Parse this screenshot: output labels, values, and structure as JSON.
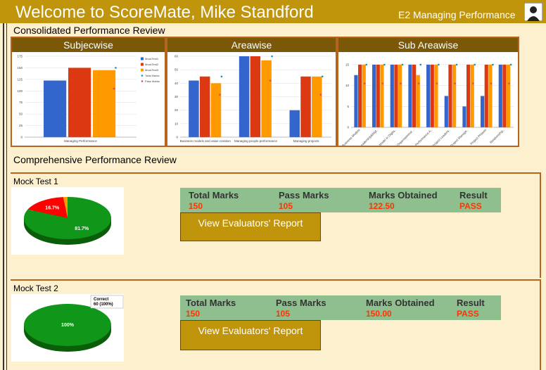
{
  "header": {
    "title": "Welcome to ScoreMate, Mike Standford",
    "role": "E2 Managing Performance"
  },
  "consolidated": {
    "title": "Consolidated Performance Review",
    "panels": [
      {
        "title": "Subjecwise",
        "chart_data": {
          "type": "bar",
          "categories": [
            "Managing Performance"
          ],
          "series": [
            {
              "name": "MockTest1",
              "color": "#3366cc",
              "style": "bar",
              "values": [
                122.5
              ]
            },
            {
              "name": "MockTest2",
              "color": "#dc3912",
              "style": "bar",
              "values": [
                150
              ]
            },
            {
              "name": "MockTest3",
              "color": "#ff9900",
              "style": "bar",
              "values": [
                145
              ]
            },
            {
              "name": "Total Marks",
              "color": "#0099c6",
              "style": "marker",
              "values": [
                150
              ]
            },
            {
              "name": "Pass Marks",
              "color": "#dd4477",
              "style": "marker",
              "values": [
                105
              ]
            }
          ],
          "ylim": [
            0,
            175
          ],
          "yticks": [
            0,
            25,
            50,
            75,
            100,
            125,
            150,
            175
          ],
          "grid": true,
          "legend": "right"
        }
      },
      {
        "title": "Areawise",
        "chart_data": {
          "type": "bar",
          "categories": [
            "Business models and value creation",
            "Managing people performance",
            "Managing projects"
          ],
          "series": [
            {
              "color": "#3366cc",
              "style": "bar",
              "values": [
                42,
                60,
                20
              ]
            },
            {
              "color": "#dc3912",
              "style": "bar",
              "values": [
                45,
                60,
                45
              ]
            },
            {
              "color": "#ff9900",
              "style": "bar",
              "values": [
                40,
                57,
                45
              ]
            },
            {
              "color": "#0099c6",
              "style": "marker",
              "values": [
                45,
                60,
                45
              ]
            },
            {
              "color": "#dd4477",
              "style": "marker",
              "values": [
                31.5,
                42,
                31.5
              ]
            }
          ],
          "ylim": [
            0,
            60
          ],
          "yticks": [
            0,
            10,
            20,
            30,
            40,
            50,
            60
          ],
          "grid": true
        }
      },
      {
        "title": "Sub Areawise",
        "chart_data": {
          "type": "bar",
          "categories": [
            "Business Models",
            "Leadership&Mgt..",
            "Model in Digita..",
            "Organisational ..",
            "Performance A..",
            "Project Leaders..",
            "Project Manage..",
            "Project Phases",
            "Relationship.."
          ],
          "series": [
            {
              "color": "#3366cc",
              "style": "bar",
              "values": [
                12.5,
                15,
                15,
                15,
                15,
                7.5,
                5,
                7.5,
                15
              ]
            },
            {
              "color": "#dc3912",
              "style": "bar",
              "values": [
                15,
                15,
                15,
                15,
                15,
                15,
                15,
                15,
                15
              ]
            },
            {
              "color": "#ff9900",
              "style": "bar",
              "values": [
                15,
                15,
                15,
                12.5,
                15,
                15,
                15,
                15,
                15
              ]
            },
            {
              "color": "#0099c6",
              "style": "marker",
              "values": [
                15,
                15,
                15,
                15,
                15,
                15,
                15,
                15,
                15
              ]
            },
            {
              "color": "#dd4477",
              "style": "marker",
              "values": [
                10.5,
                10.5,
                10.5,
                10.5,
                10.5,
                10.5,
                10.5,
                10.5,
                10.5
              ]
            }
          ],
          "ylim": [
            0,
            17
          ],
          "yticks": [
            0,
            5,
            10,
            15
          ],
          "grid": true,
          "rotate_labels": true
        }
      }
    ]
  },
  "comprehensive": {
    "title": "Comprehensive Performance Review",
    "tests": [
      {
        "name": "Mock Test 1",
        "pie": {
          "type": "pie",
          "values": [
            81.7,
            16.7,
            1.6
          ],
          "value_labels": [
            "81.7%",
            "16.7%",
            null
          ],
          "colors": [
            "#109618",
            "#ff0000",
            "#ff9900"
          ]
        },
        "table": {
          "headers": [
            "Total Marks",
            "Pass Marks",
            "Marks Obtained",
            "Result"
          ],
          "values": [
            "150",
            "105",
            "122.50",
            "PASS"
          ]
        },
        "button": "View Evaluators' Report"
      },
      {
        "name": "Mock Test 2",
        "pie": {
          "type": "pie",
          "values": [
            100
          ],
          "value_labels": [
            "100%"
          ],
          "colors": [
            "#109618"
          ],
          "tooltip": [
            "Correct",
            "60 (100%)"
          ]
        },
        "table": {
          "headers": [
            "Total Marks",
            "Pass Marks",
            "Marks Obtained",
            "Result"
          ],
          "values": [
            "150",
            "105",
            "150.00",
            "PASS"
          ]
        },
        "button": "View Evaluators' Report"
      }
    ]
  }
}
